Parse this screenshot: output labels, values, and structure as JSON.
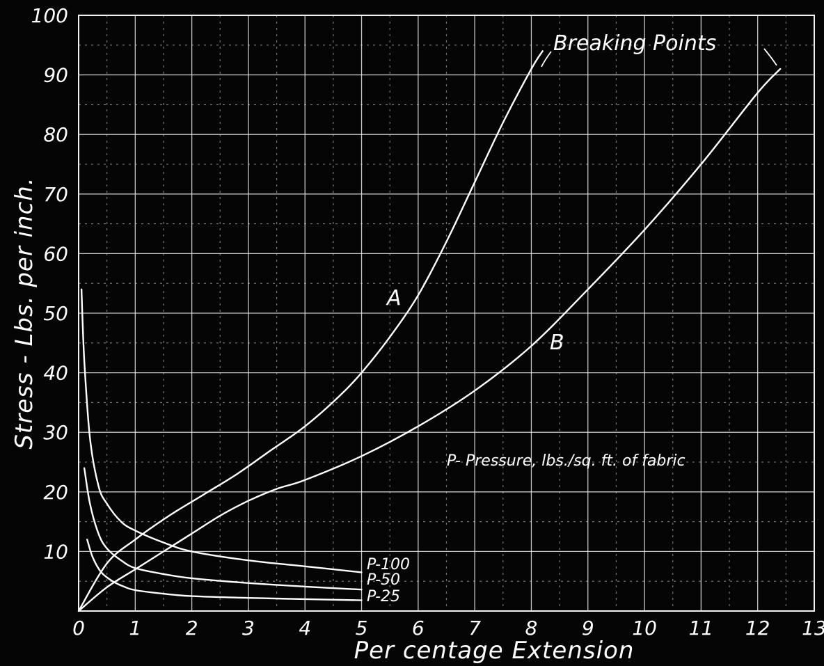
{
  "chart_data": {
    "type": "line",
    "title": "",
    "xlabel": "Per centage Extension",
    "ylabel": "Stress - Lbs. per inch.",
    "xlim": [
      0,
      13
    ],
    "ylim": [
      0,
      100
    ],
    "x_ticks": [
      "0",
      "1",
      "2",
      "3",
      "4",
      "5",
      "6",
      "7",
      "8",
      "9",
      "10",
      "11",
      "12",
      "13"
    ],
    "y_ticks": [
      "10",
      "20",
      "30",
      "40",
      "50",
      "60",
      "70",
      "80",
      "90",
      "100"
    ],
    "grid": true,
    "series": [
      {
        "name": "A",
        "x": [
          0,
          0.5,
          1,
          1.6,
          2.2,
          2.8,
          3.4,
          4,
          4.6,
          5,
          5.5,
          6,
          6.5,
          7,
          7.5,
          8,
          8.2
        ],
        "y": [
          0,
          8,
          12,
          16,
          19.5,
          23,
          27,
          31,
          36,
          40,
          46,
          53,
          62,
          72,
          82,
          91,
          94
        ]
      },
      {
        "name": "B",
        "x": [
          0,
          0.5,
          1,
          1.5,
          2,
          2.5,
          3,
          3.5,
          4,
          5,
          6,
          7,
          8,
          9,
          10,
          11,
          12,
          12.4
        ],
        "y": [
          0,
          4,
          7,
          10,
          13,
          16,
          18.5,
          20.5,
          22,
          26,
          31,
          37,
          44.5,
          54,
          64,
          75,
          87,
          91
        ]
      },
      {
        "name": "P=100",
        "x": [
          0.05,
          0.1,
          0.2,
          0.35,
          0.5,
          0.75,
          1,
          1.5,
          2,
          3,
          4,
          5
        ],
        "y": [
          54,
          42,
          29,
          21,
          18,
          15,
          13.5,
          11.5,
          10,
          8.5,
          7.5,
          6.5
        ]
      },
      {
        "name": "P=50",
        "x": [
          0.1,
          0.2,
          0.35,
          0.5,
          0.75,
          1,
          1.5,
          2,
          3,
          4,
          5
        ],
        "y": [
          24,
          18,
          13,
          10.5,
          8.5,
          7.2,
          6.2,
          5.5,
          4.7,
          4.1,
          3.6
        ]
      },
      {
        "name": "P=25",
        "x": [
          0.15,
          0.25,
          0.4,
          0.6,
          0.8,
          1,
          1.5,
          2,
          3,
          4,
          5
        ],
        "y": [
          12,
          9,
          6.5,
          5,
          4.1,
          3.5,
          2.9,
          2.5,
          2.2,
          2,
          1.8
        ]
      }
    ],
    "annotations": {
      "breaking_points": "Breaking Points",
      "label_a": "A",
      "label_b": "B",
      "pressure_note": "P- Pressure, lbs./sq. ft. of fabric",
      "p100": "P-100",
      "p50": "P-50",
      "p25": "P-25"
    }
  }
}
